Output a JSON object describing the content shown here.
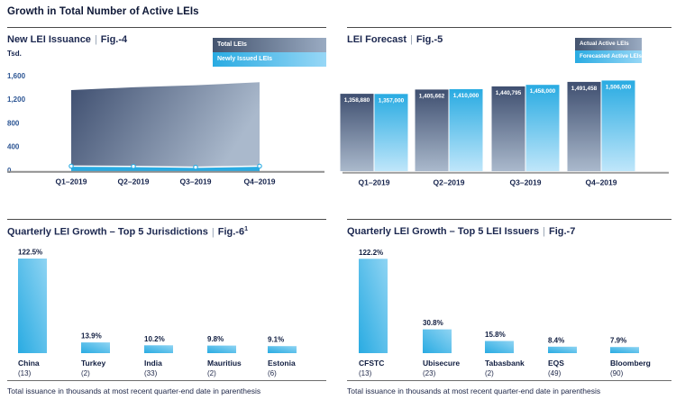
{
  "page": {
    "title": "Growth in Total Number of Active LEIs"
  },
  "sep": "|",
  "colors": {
    "accent_blue": "#29abe2",
    "accent_blue_light": "#8fd4f3",
    "slate_dark": "#3f4f70",
    "slate_light": "#aab9cc",
    "navy_text": "#101d40",
    "tick_blue": "#2d5694",
    "axis_gray": "#8f8f8f"
  },
  "chart_data": [
    {
      "id": "fig4",
      "type": "area",
      "title": "New LEI Issuance",
      "fig_label": "Fig.-4",
      "y_unit": "Tsd.",
      "categories": [
        "Q1–2019",
        "Q2–2019",
        "Q3–2019",
        "Q4–2019"
      ],
      "series": [
        {
          "name": "Total LEIs",
          "values": [
            1358.88,
            1405.662,
            1440.795,
            1491.458
          ]
        },
        {
          "name": "Newly Issued LEIs",
          "values": [
            70,
            65,
            52,
            70
          ]
        }
      ],
      "legend": [
        "Total LEIs",
        "Newly Issued LEIs"
      ],
      "ylim": [
        0,
        1600
      ],
      "yticks": [
        0,
        400,
        800,
        1200,
        1600
      ],
      "ytick_labels": [
        "0",
        "400",
        "800",
        "1,200",
        "1,600"
      ]
    },
    {
      "id": "fig5",
      "type": "bar",
      "title": "LEI Forecast",
      "fig_label": "Fig.-5",
      "categories": [
        "Q1–2019",
        "Q2–2019",
        "Q3–2019",
        "Q4–2019"
      ],
      "series": [
        {
          "name": "Actual Active LEIs",
          "values": [
            1358880,
            1405662,
            1440795,
            1491458
          ],
          "labels": [
            "1,358,880",
            "1,405,662",
            "1,440,795",
            "1,491,458"
          ]
        },
        {
          "name": "Forecasted Active LEIs",
          "values": [
            1357000,
            1410000,
            1458000,
            1506000
          ],
          "labels": [
            "1,357,000",
            "1,410,000",
            "1,458,000",
            "1,506,000"
          ]
        }
      ],
      "legend": [
        "Actual Active LEIs",
        "Forecasted Active LEIs"
      ]
    },
    {
      "id": "fig6",
      "type": "bar",
      "title": "Quarterly LEI Growth – Top 5 Jurisdictions",
      "fig_label": "Fig.-6",
      "fig_sup": "1",
      "categories": [
        "China",
        "Turkey",
        "India",
        "Mauritius",
        "Estonia"
      ],
      "counts": [
        "(13)",
        "(2)",
        "(33)",
        "(2)",
        "(6)"
      ],
      "values": [
        122.5,
        13.9,
        10.2,
        9.8,
        9.1
      ],
      "value_labels": [
        "122.5%",
        "13.9%",
        "10.2%",
        "9.8%",
        "9.1%"
      ],
      "footnote": "Total issuance in thousands at most recent quarter-end date in parenthesis"
    },
    {
      "id": "fig7",
      "type": "bar",
      "title": "Quarterly LEI Growth – Top 5 LEI Issuers",
      "fig_label": "Fig.-7",
      "categories": [
        "CFSTC",
        "Ubisecure",
        "Tabasbank",
        "EQS",
        "Bloomberg"
      ],
      "counts": [
        "(13)",
        "(23)",
        "(2)",
        "(49)",
        "(90)"
      ],
      "values": [
        122.2,
        30.8,
        15.8,
        8.4,
        7.9
      ],
      "value_labels": [
        "122.2%",
        "30.8%",
        "15.8%",
        "8.4%",
        "7.9%"
      ],
      "footnote": "Total issuance in thousands at most recent quarter-end date in parenthesis"
    }
  ]
}
